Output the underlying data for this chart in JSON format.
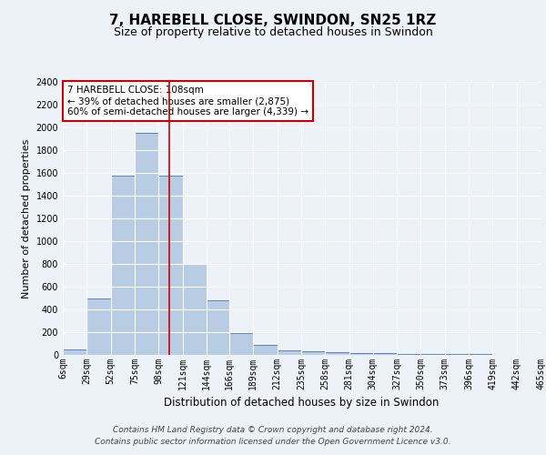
{
  "title1": "7, HAREBELL CLOSE, SWINDON, SN25 1RZ",
  "title2": "Size of property relative to detached houses in Swindon",
  "xlabel": "Distribution of detached houses by size in Swindon",
  "ylabel": "Number of detached properties",
  "bin_edges": [
    6,
    29,
    52,
    75,
    98,
    121,
    144,
    166,
    189,
    212,
    235,
    258,
    281,
    304,
    327,
    350,
    373,
    396,
    419,
    442,
    465
  ],
  "bar_heights": [
    50,
    500,
    1580,
    1950,
    1580,
    800,
    480,
    195,
    90,
    40,
    35,
    25,
    20,
    15,
    10,
    5,
    5,
    5,
    3,
    2
  ],
  "bar_color": "#b8cce4",
  "bar_edgecolor": "#4472c4",
  "vline_x": 108,
  "vline_color": "#cc0000",
  "ylim": [
    0,
    2400
  ],
  "yticks": [
    0,
    200,
    400,
    600,
    800,
    1000,
    1200,
    1400,
    1600,
    1800,
    2000,
    2200,
    2400
  ],
  "annotation_title": "7 HAREBELL CLOSE: 108sqm",
  "annotation_line1": "← 39% of detached houses are smaller (2,875)",
  "annotation_line2": "60% of semi-detached houses are larger (4,339) →",
  "annotation_box_color": "#ffffff",
  "annotation_box_edgecolor": "#cc0000",
  "footer1": "Contains HM Land Registry data © Crown copyright and database right 2024.",
  "footer2": "Contains public sector information licensed under the Open Government Licence v3.0.",
  "bg_color": "#edf2f8",
  "plot_bg_color": "#edf2f8",
  "grid_color": "#ffffff",
  "title1_fontsize": 11,
  "title2_fontsize": 9,
  "xlabel_fontsize": 8.5,
  "ylabel_fontsize": 8,
  "tick_fontsize": 7,
  "annotation_fontsize": 7.5,
  "footer_fontsize": 6.5
}
